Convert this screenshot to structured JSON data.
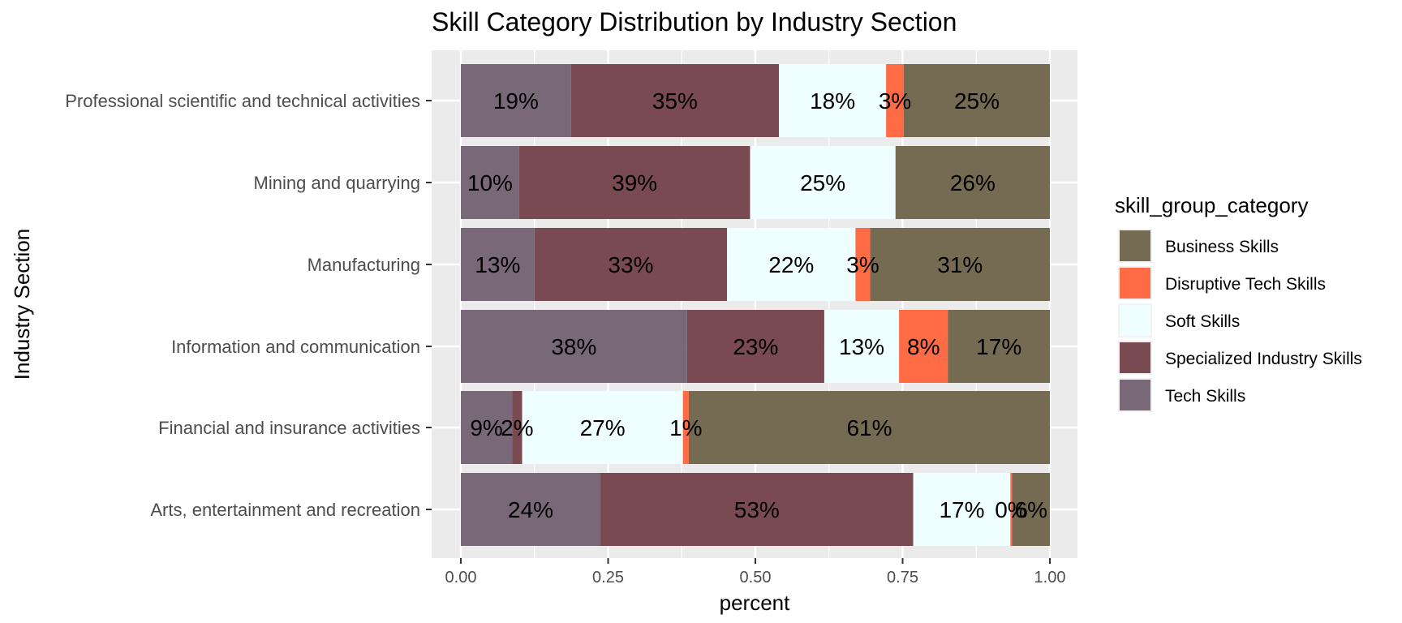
{
  "chart_data": {
    "type": "bar",
    "orientation": "horizontal",
    "stacked": true,
    "title": "Skill Category Distribution by Industry Section",
    "xlabel": "percent",
    "ylabel": "Industry Section",
    "xlim": [
      0,
      1
    ],
    "x_ticks": [
      "0.00",
      "0.25",
      "0.50",
      "0.75",
      "1.00"
    ],
    "x_tick_values": [
      0,
      0.25,
      0.5,
      0.75,
      1
    ],
    "grid": true,
    "legend_position": "right",
    "legend_title": "skill_group_category",
    "legend": [
      {
        "name": "Business Skills",
        "color": "#756A52"
      },
      {
        "name": "Disruptive Tech Skills",
        "color": "#FF6B45"
      },
      {
        "name": "Soft Skills",
        "color": "#EFFFFF"
      },
      {
        "name": "Specialized Industry Skills",
        "color": "#794A51"
      },
      {
        "name": "Tech Skills",
        "color": "#786878"
      }
    ],
    "categories": [
      "Professional scientific and technical activities",
      "Mining and quarrying",
      "Manufacturing",
      "Information and communication",
      "Financial and insurance activities",
      "Arts, entertainment and recreation"
    ],
    "stack_order": [
      "Tech Skills",
      "Specialized Industry Skills",
      "Soft Skills",
      "Disruptive Tech Skills",
      "Business Skills"
    ],
    "series": [
      {
        "name": "Tech Skills",
        "color": "#786878",
        "values": [
          0.187,
          0.099,
          0.125,
          0.384,
          0.087,
          0.237
        ],
        "labels": [
          "19%",
          "10%",
          "13%",
          "38%",
          "9%",
          "24%"
        ]
      },
      {
        "name": "Specialized Industry Skills",
        "color": "#794A51",
        "values": [
          0.353,
          0.392,
          0.327,
          0.233,
          0.017,
          0.531
        ],
        "labels": [
          "35%",
          "39%",
          "33%",
          "23%",
          "2%",
          "53%"
        ]
      },
      {
        "name": "Soft Skills",
        "color": "#EFFFFF",
        "values": [
          0.182,
          0.247,
          0.218,
          0.127,
          0.273,
          0.165
        ],
        "labels": [
          "18%",
          "25%",
          "22%",
          "13%",
          "27%",
          "17%"
        ]
      },
      {
        "name": "Disruptive Tech Skills",
        "color": "#FF6B45",
        "values": [
          0.03,
          0.0,
          0.025,
          0.083,
          0.01,
          0.003
        ],
        "labels": [
          "3%",
          "",
          "3%",
          "8%",
          "1%",
          "0%"
        ]
      },
      {
        "name": "Business Skills",
        "color": "#756A52",
        "values": [
          0.248,
          0.262,
          0.305,
          0.173,
          0.613,
          0.064
        ],
        "labels": [
          "25%",
          "26%",
          "31%",
          "17%",
          "61%",
          "6%"
        ]
      }
    ]
  }
}
